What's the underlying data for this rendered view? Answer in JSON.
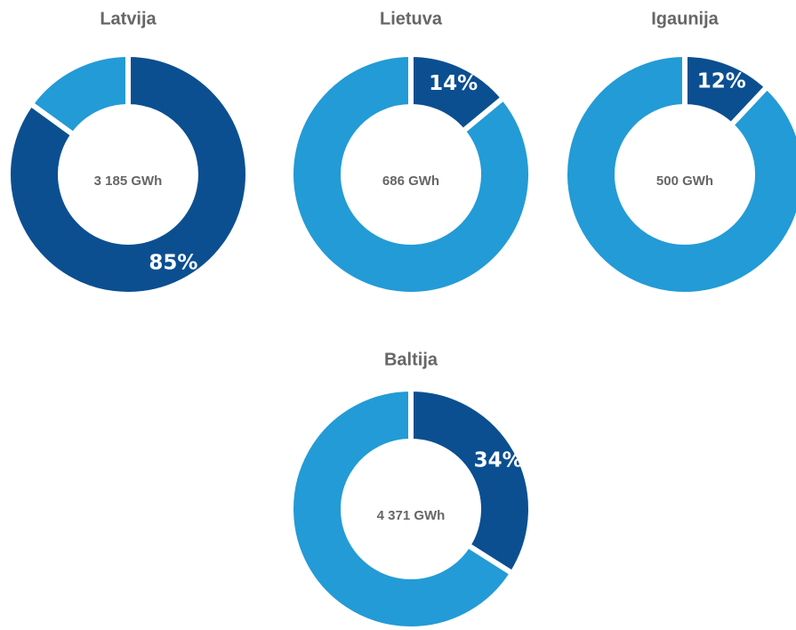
{
  "chart_data": [
    {
      "type": "pie",
      "title": "Latvija",
      "center_label": "3 185 GWh",
      "values": [
        85,
        15
      ],
      "value_labels": [
        "85%",
        null
      ],
      "colors": [
        "#0b4f91",
        "#239bd6"
      ]
    },
    {
      "type": "pie",
      "title": "Lietuva",
      "center_label": "686 GWh",
      "values": [
        14,
        86
      ],
      "value_labels": [
        "14%",
        null
      ],
      "colors": [
        "#0b4f91",
        "#239bd6"
      ]
    },
    {
      "type": "pie",
      "title": "Igaunija",
      "center_label": "500 GWh",
      "values": [
        12,
        88
      ],
      "value_labels": [
        "12%",
        null
      ],
      "colors": [
        "#0b4f91",
        "#239bd6"
      ]
    },
    {
      "type": "pie",
      "title": "Baltija",
      "center_label": "4 371 GWh",
      "values": [
        34,
        66
      ],
      "value_labels": [
        "34%",
        null
      ],
      "colors": [
        "#0b4f91",
        "#239bd6"
      ]
    }
  ]
}
